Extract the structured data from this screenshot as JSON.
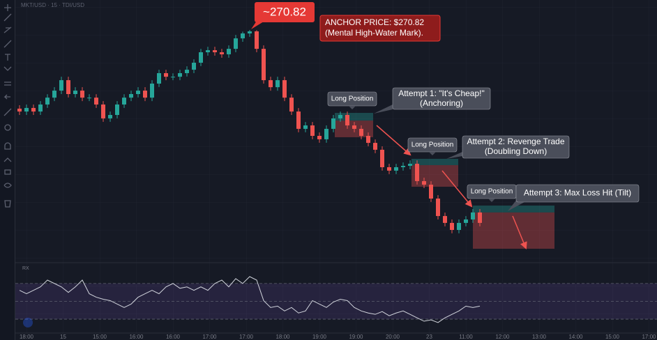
{
  "header": {
    "symbol": "MKT/USD · 15 · TDI/USD"
  },
  "chart_data": {
    "type": "candlestick",
    "open": [
      265.1,
      264.89,
      265.15,
      264.89,
      265.4,
      265.9,
      266.41,
      267.17,
      266.16,
      266.41,
      265.9,
      265.9,
      265.4,
      264.39,
      264.64,
      265.4,
      265.9,
      266.16,
      266.41,
      265.9,
      266.92,
      267.68,
      267.42,
      267.42,
      267.68,
      267.93,
      268.44,
      269.2,
      269.35,
      269.2,
      269.05,
      269.45,
      270.21,
      270.57,
      270.72,
      269.45,
      267.17,
      266.66,
      267.17,
      265.9,
      264.89,
      263.63,
      263.88,
      263.12,
      262.87,
      263.63,
      264.39,
      264.64,
      263.88,
      263.63,
      263.12,
      262.61,
      262.11,
      260.84,
      260.59,
      260.84,
      260.94,
      261.09,
      259.83,
      259.57,
      258.56,
      257.29,
      256.79,
      256.28,
      256.79,
      257.04,
      257.55
    ],
    "high": [
      265.35,
      265.4,
      265.4,
      265.65,
      266.15,
      266.66,
      267.42,
      267.42,
      266.66,
      266.66,
      266.15,
      266.15,
      265.65,
      264.89,
      265.65,
      266.15,
      266.41,
      266.66,
      266.66,
      267.17,
      267.93,
      267.93,
      267.67,
      267.93,
      268.18,
      268.69,
      269.45,
      269.6,
      269.6,
      269.45,
      269.7,
      270.46,
      270.7,
      270.82,
      270.8,
      269.7,
      267.42,
      267.42,
      267.42,
      266.15,
      265.14,
      264.13,
      264.13,
      263.37,
      263.88,
      264.64,
      264.89,
      264.89,
      264.13,
      263.88,
      263.37,
      262.86,
      262.36,
      261.09,
      261.09,
      261.19,
      261.34,
      261.34,
      260.08,
      259.82,
      258.81,
      257.54,
      257.04,
      257.04,
      257.29,
      257.8,
      257.8
    ],
    "low": [
      264.64,
      264.64,
      264.64,
      264.64,
      265.15,
      265.65,
      266.16,
      265.91,
      265.91,
      265.65,
      265.65,
      265.15,
      264.14,
      264.14,
      264.39,
      265.15,
      265.65,
      265.91,
      265.65,
      265.65,
      266.67,
      267.17,
      267.17,
      267.17,
      267.43,
      267.68,
      268.19,
      268.95,
      268.95,
      268.8,
      268.8,
      269.2,
      269.96,
      270.32,
      269.2,
      266.92,
      266.41,
      266.41,
      265.65,
      264.64,
      263.38,
      263.38,
      262.87,
      262.62,
      262.62,
      263.38,
      264.14,
      263.63,
      263.38,
      262.87,
      262.36,
      261.86,
      260.59,
      260.34,
      260.34,
      260.59,
      260.69,
      259.58,
      259.32,
      258.31,
      257.04,
      256.54,
      256.03,
      256.03,
      256.54,
      256.79,
      256.54
    ],
    "close": [
      264.89,
      265.15,
      264.89,
      265.4,
      265.9,
      266.41,
      267.17,
      266.16,
      266.41,
      265.9,
      265.9,
      265.4,
      264.39,
      264.64,
      265.4,
      265.9,
      266.16,
      266.41,
      265.9,
      266.92,
      267.68,
      267.42,
      267.42,
      267.68,
      267.93,
      268.44,
      269.2,
      269.35,
      269.2,
      269.05,
      269.45,
      270.21,
      270.57,
      270.72,
      269.45,
      267.17,
      266.66,
      267.17,
      265.9,
      264.89,
      263.63,
      263.88,
      263.12,
      262.87,
      263.63,
      264.39,
      264.64,
      263.88,
      263.63,
      263.12,
      262.61,
      262.11,
      260.84,
      260.59,
      260.84,
      260.94,
      261.09,
      259.83,
      259.57,
      258.56,
      257.29,
      256.79,
      256.28,
      256.79,
      257.04,
      257.55,
      256.79
    ],
    "ylim": [
      254,
      273
    ],
    "up_color": "#26a69a",
    "down_color": "#ef5350",
    "time_labels": [
      "18:00",
      "15",
      "15:00",
      "16:00",
      "16:00",
      "17:00",
      "17:00",
      "18:00",
      "19:00",
      "19:00",
      "20:00",
      "23",
      "11:00",
      "12:00",
      "13:00",
      "14:00",
      "15:00",
      "17:00"
    ],
    "positions": [
      {
        "label": "Long Position",
        "start": 45.2,
        "end": 50.7,
        "entry": 264.23,
        "target": 264.79,
        "stop": 263.02
      },
      {
        "label": "Long Position",
        "start": 56.2,
        "end": 62.9,
        "entry": 260.99,
        "target": 261.45,
        "stop": 259.42
      },
      {
        "label": "Long Position",
        "start": 65.0,
        "end": 76.7,
        "entry": 257.55,
        "target": 258.05,
        "stop": 254.91
      }
    ],
    "price_label": "~270.82",
    "anchor_note": [
      "ANCHOR PRICE: $270.82",
      "(Mental High-Water Mark)."
    ],
    "callouts": [
      [
        "Attempt 1: \"It's Cheap!\"",
        "(Anchoring)"
      ],
      [
        "Attempt 2: Revenge Trade",
        "(Doubling Down)"
      ],
      [
        "Attempt 3: Max Loss Hit (Tilt)"
      ]
    ],
    "rsi": {
      "name": "RX",
      "color": "#d1d4dc",
      "ylim": [
        16,
        91
      ],
      "levels": [
        70,
        50,
        30
      ],
      "values": [
        62.3,
        58.5,
        62.3,
        66.2,
        73.8,
        70,
        66.2,
        60,
        66.2,
        73.8,
        58.5,
        54.6,
        52.3,
        50.8,
        46.9,
        43.1,
        46.9,
        54.6,
        58.5,
        62.3,
        58.5,
        66.2,
        70,
        64.6,
        66.2,
        62.3,
        66.2,
        62.3,
        70,
        73.8,
        66.2,
        75.4,
        70,
        77.7,
        73.8,
        50.8,
        43.1,
        44.6,
        39.2,
        43.1,
        36.9,
        39.2,
        50.8,
        46.9,
        43.1,
        49.2,
        52.3,
        50.8,
        43.1,
        39.2,
        36.9,
        35.4,
        38.5,
        33.8,
        36.9,
        39.2,
        35.4,
        31.5,
        27.7,
        29.2,
        26.2,
        31.5,
        35.4,
        39.2,
        44.6,
        43.1,
        44.6
      ]
    }
  }
}
